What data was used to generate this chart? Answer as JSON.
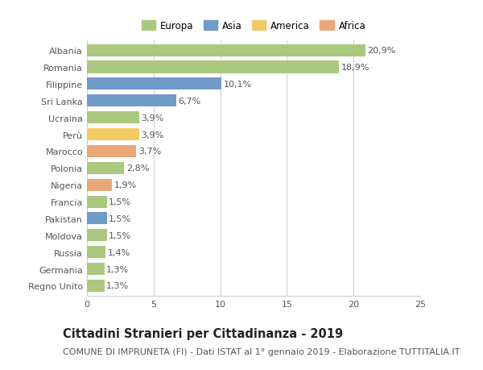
{
  "categories": [
    "Albania",
    "Romania",
    "Filippine",
    "Sri Lanka",
    "Ucraina",
    "Perù",
    "Marocco",
    "Polonia",
    "Nigeria",
    "Francia",
    "Pakistan",
    "Moldova",
    "Russia",
    "Germania",
    "Regno Unito"
  ],
  "values": [
    20.9,
    18.9,
    10.1,
    6.7,
    3.9,
    3.9,
    3.7,
    2.8,
    1.9,
    1.5,
    1.5,
    1.5,
    1.4,
    1.3,
    1.3
  ],
  "labels": [
    "20,9%",
    "18,9%",
    "10,1%",
    "6,7%",
    "3,9%",
    "3,9%",
    "3,7%",
    "2,8%",
    "1,9%",
    "1,5%",
    "1,5%",
    "1,5%",
    "1,4%",
    "1,3%",
    "1,3%"
  ],
  "continents": [
    "Europa",
    "Europa",
    "Asia",
    "Asia",
    "Europa",
    "America",
    "Africa",
    "Europa",
    "Africa",
    "Europa",
    "Asia",
    "Europa",
    "Europa",
    "Europa",
    "Europa"
  ],
  "colors": {
    "Europa": "#aac87e",
    "Asia": "#6f9bc8",
    "America": "#f2cb62",
    "Africa": "#e8a87a"
  },
  "legend_order": [
    "Europa",
    "Asia",
    "America",
    "Africa"
  ],
  "title": "Cittadini Stranieri per Cittadinanza - 2019",
  "subtitle": "COMUNE DI IMPRUNETA (FI) - Dati ISTAT al 1° gennaio 2019 - Elaborazione TUTTITALIA.IT",
  "xlim": [
    0,
    25
  ],
  "xticks": [
    0,
    5,
    10,
    15,
    20,
    25
  ],
  "background_color": "#ffffff",
  "grid_color": "#cccccc",
  "bar_height": 0.72,
  "title_fontsize": 10.5,
  "subtitle_fontsize": 8,
  "label_fontsize": 8,
  "tick_fontsize": 8,
  "legend_fontsize": 8.5
}
